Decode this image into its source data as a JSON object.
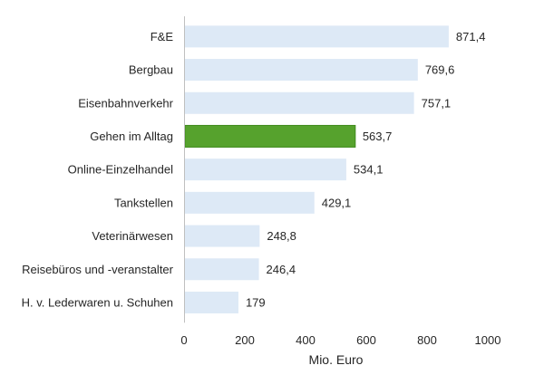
{
  "chart_data": {
    "type": "bar",
    "orientation": "horizontal",
    "categories": [
      "F&E",
      "Bergbau",
      "Eisenbahnverkehr",
      "Gehen im Alltag",
      "Online-Einzelhandel",
      "Tankstellen",
      "Veterinärwesen",
      "Reisebüros und -veranstalter",
      "H. v. Lederwaren u. Schuhen"
    ],
    "values": [
      871.4,
      769.6,
      757.1,
      563.7,
      534.1,
      429.1,
      248.8,
      246.4,
      179
    ],
    "value_labels": [
      "871,4",
      "769,6",
      "757,1",
      "563,7",
      "534,1",
      "429,1",
      "248,8",
      "246,4",
      "179"
    ],
    "highlight_index": 3,
    "xlabel": "Mio. Euro",
    "xlim": [
      0,
      1000
    ],
    "xticks": [
      0,
      200,
      400,
      600,
      800,
      1000
    ],
    "xtick_labels": [
      "0",
      "200",
      "400",
      "600",
      "800",
      "1000"
    ],
    "grid": false,
    "colors": {
      "bar": "#dde9f6",
      "highlight": "#56a22d",
      "highlight_border": "#3f8a1c",
      "axis": "#bfbfbf",
      "text": "#262626"
    }
  }
}
